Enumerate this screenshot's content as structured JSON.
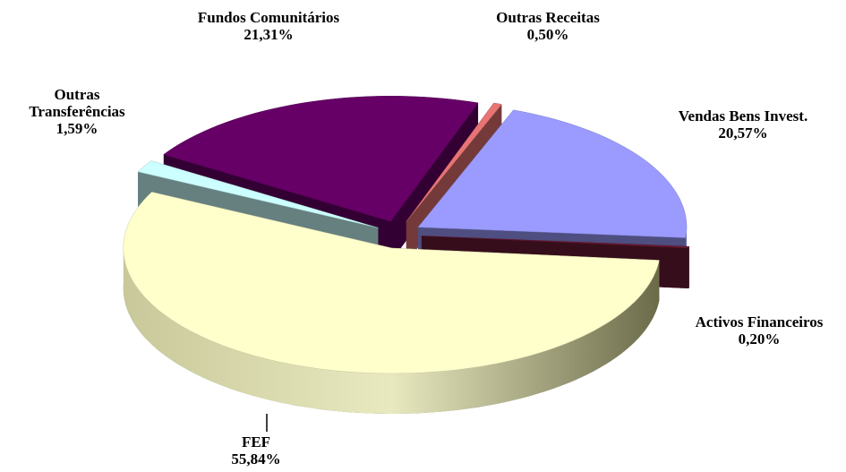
{
  "chart_data": {
    "type": "pie",
    "categories": [
      "Outras Receitas",
      "Vendas Bens Invest.",
      "Activos Financeiros",
      "FEF",
      "Outras Transferências",
      "Fundos Comunitários"
    ],
    "values": [
      0.5,
      20.57,
      0.2,
      55.84,
      1.59,
      21.31
    ],
    "value_labels": [
      "0,50%",
      "20,57%",
      "0,20%",
      "55,84%",
      "1,59%",
      "21,31%"
    ],
    "colors": [
      "#e87474",
      "#9b9bff",
      "#6b1a35",
      "#ffffcc",
      "#ccffff",
      "#660066"
    ]
  }
}
